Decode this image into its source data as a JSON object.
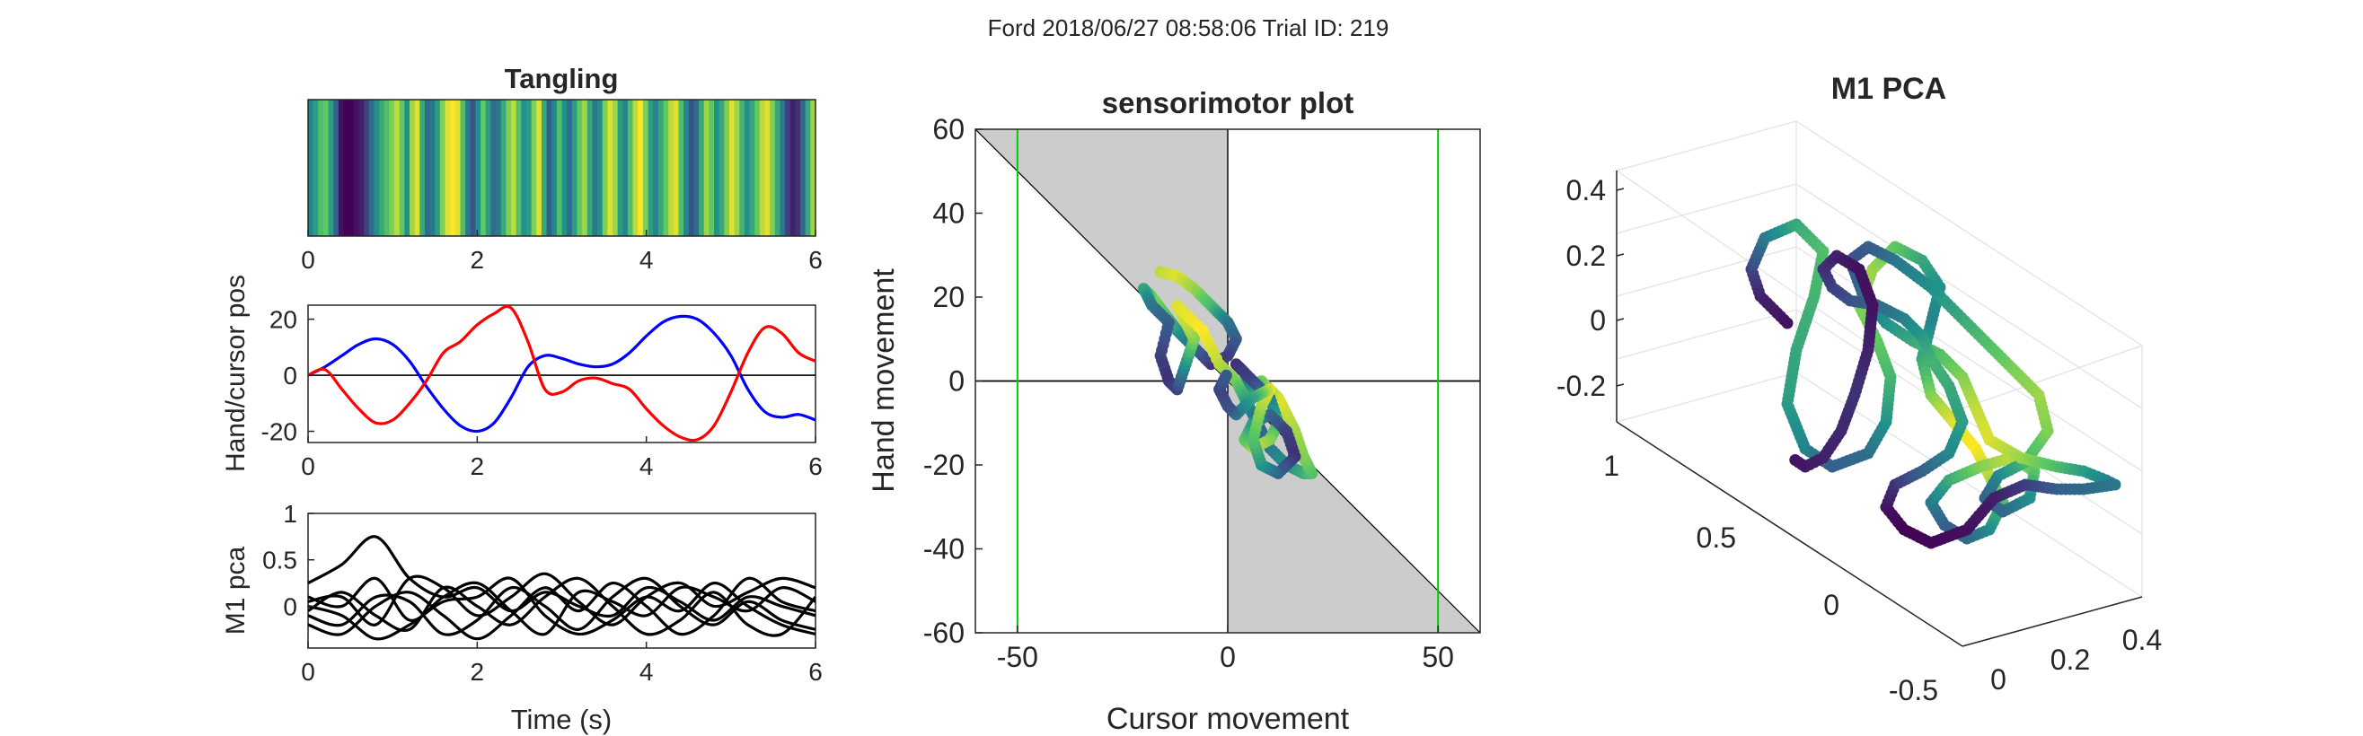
{
  "figure": {
    "suptitle": "Ford 2018/06/27 08:58:06 Trial ID: 219"
  },
  "chart_data": [
    {
      "id": "tangling",
      "type": "heatmap",
      "title": "Tangling",
      "xlabel": "",
      "ylabel": "",
      "xlim": [
        0,
        6
      ],
      "xticks": [
        "0",
        "2",
        "4",
        "6"
      ],
      "colormap": "viridis",
      "values": [
        0.45,
        0.55,
        0.7,
        0.75,
        0.55,
        0.3,
        0.05,
        0.0,
        0.0,
        0.05,
        0.1,
        0.2,
        0.35,
        0.5,
        0.6,
        0.7,
        0.8,
        0.9,
        0.75,
        0.5,
        0.85,
        0.95,
        0.6,
        0.35,
        0.4,
        0.55,
        0.8,
        0.95,
        1.0,
        0.95,
        0.7,
        0.4,
        0.25,
        0.5,
        0.75,
        0.55,
        0.35,
        0.4,
        0.6,
        0.8,
        0.9,
        0.7,
        0.5,
        0.55,
        0.8,
        0.95,
        0.6,
        0.3,
        0.45,
        0.7,
        0.5,
        0.35,
        0.55,
        0.75,
        0.85,
        0.6,
        0.4,
        0.5,
        0.8,
        0.95,
        0.85,
        0.55,
        0.45,
        0.7,
        0.9,
        1.0,
        0.8,
        0.55,
        0.45,
        0.6,
        0.75,
        0.9,
        0.95,
        0.7,
        0.45,
        0.25,
        0.35,
        0.6,
        0.85,
        0.75,
        0.5,
        0.6,
        0.8,
        0.95,
        0.85,
        0.65,
        0.5,
        0.6,
        0.75,
        0.9,
        0.95,
        0.8,
        0.6,
        0.4,
        0.2,
        0.1,
        0.15,
        0.35,
        0.6,
        0.85
      ]
    },
    {
      "id": "hand_cursor",
      "type": "line",
      "title": "",
      "xlabel": "",
      "ylabel": "Hand/cursor pos",
      "xlim": [
        0,
        6
      ],
      "ylim": [
        -24,
        25
      ],
      "xticks": [
        "0",
        "2",
        "4",
        "6"
      ],
      "yticks": [
        "-20",
        "0",
        "20"
      ],
      "zero_line": true,
      "series": [
        {
          "color": "#0000ff",
          "x": [
            0,
            0.2,
            0.4,
            0.6,
            0.8,
            1.0,
            1.2,
            1.4,
            1.6,
            1.8,
            2.0,
            2.2,
            2.4,
            2.6,
            2.8,
            3.0,
            3.2,
            3.4,
            3.6,
            3.8,
            4.0,
            4.2,
            4.4,
            4.6,
            4.8,
            5.0,
            5.2,
            5.4,
            5.6,
            5.8,
            6.0
          ],
          "y": [
            0,
            3,
            7,
            11,
            13,
            11,
            5,
            -4,
            -12,
            -18,
            -20,
            -17,
            -8,
            3,
            7,
            6,
            4,
            3,
            4,
            8,
            14,
            19,
            21,
            20,
            15,
            7,
            -5,
            -13,
            -15,
            -14,
            -16
          ]
        },
        {
          "color": "#ff0000",
          "x": [
            0,
            0.2,
            0.4,
            0.6,
            0.8,
            1.0,
            1.2,
            1.4,
            1.6,
            1.8,
            2.0,
            2.2,
            2.4,
            2.6,
            2.8,
            3.0,
            3.2,
            3.4,
            3.6,
            3.8,
            4.0,
            4.2,
            4.4,
            4.6,
            4.8,
            5.0,
            5.2,
            5.4,
            5.6,
            5.8,
            6.0
          ],
          "y": [
            0,
            2,
            -5,
            -12,
            -17,
            -16,
            -10,
            -2,
            8,
            12,
            18,
            22,
            24,
            12,
            -5,
            -6,
            -2,
            -1,
            -3,
            -5,
            -12,
            -18,
            -22,
            -23,
            -18,
            -6,
            8,
            17,
            15,
            8,
            5
          ]
        }
      ]
    },
    {
      "id": "m1_pca_traces",
      "type": "line",
      "title": "",
      "xlabel": "Time (s)",
      "ylabel": "M1 pca",
      "xlim": [
        0,
        6
      ],
      "ylim": [
        -0.45,
        1.0
      ],
      "xticks": [
        "0",
        "2",
        "4",
        "6"
      ],
      "yticks": [
        "0",
        "0.5",
        "1"
      ],
      "series": [
        {
          "color": "#000000",
          "x": [
            0,
            0.4,
            0.8,
            1.2,
            1.6,
            2.0,
            2.4,
            2.8,
            3.2,
            3.6,
            4.0,
            4.4,
            4.8,
            5.2,
            5.6,
            6.0
          ],
          "y": [
            0.25,
            0.45,
            0.75,
            0.3,
            0.1,
            0.2,
            -0.05,
            0.15,
            0.0,
            -0.1,
            0.2,
            0.05,
            -0.15,
            0.1,
            0.0,
            -0.1
          ]
        },
        {
          "color": "#000000",
          "x": [
            0,
            0.4,
            0.8,
            1.2,
            1.6,
            2.0,
            2.4,
            2.8,
            3.2,
            3.6,
            4.0,
            4.4,
            4.8,
            5.2,
            5.6,
            6.0
          ],
          "y": [
            0.05,
            0.1,
            -0.2,
            0.3,
            0.2,
            -0.1,
            0.1,
            0.35,
            0.05,
            -0.2,
            0.1,
            0.25,
            0.0,
            0.15,
            0.3,
            0.2
          ]
        },
        {
          "color": "#000000",
          "x": [
            0,
            0.4,
            0.8,
            1.2,
            1.6,
            2.0,
            2.4,
            2.8,
            3.2,
            3.6,
            4.0,
            4.4,
            4.8,
            5.2,
            5.6,
            6.0
          ],
          "y": [
            -0.1,
            -0.2,
            0.1,
            0.05,
            -0.3,
            -0.15,
            0.2,
            0.0,
            -0.25,
            0.1,
            0.3,
            0.0,
            -0.2,
            0.05,
            -0.15,
            -0.25
          ]
        },
        {
          "color": "#000000",
          "x": [
            0,
            0.4,
            0.8,
            1.2,
            1.6,
            2.0,
            2.4,
            2.8,
            3.2,
            3.6,
            4.0,
            4.4,
            4.8,
            5.2,
            5.6,
            6.0
          ],
          "y": [
            0.1,
            0.0,
            0.3,
            -0.15,
            0.1,
            0.25,
            -0.05,
            -0.3,
            0.15,
            0.05,
            -0.1,
            0.2,
            0.1,
            -0.05,
            0.2,
            0.05
          ]
        },
        {
          "color": "#000000",
          "x": [
            0,
            0.4,
            0.8,
            1.2,
            1.6,
            2.0,
            2.4,
            2.8,
            3.2,
            3.6,
            4.0,
            4.4,
            4.8,
            5.2,
            5.6,
            6.0
          ],
          "y": [
            -0.05,
            0.15,
            -0.1,
            -0.25,
            0.2,
            0.0,
            -0.2,
            0.1,
            0.3,
            0.0,
            -0.3,
            -0.15,
            0.15,
            -0.2,
            -0.3,
            0.1
          ]
        },
        {
          "color": "#000000",
          "x": [
            0,
            0.4,
            0.8,
            1.2,
            1.6,
            2.0,
            2.4,
            2.8,
            3.2,
            3.6,
            4.0,
            4.4,
            4.8,
            5.2,
            5.6,
            6.0
          ],
          "y": [
            -0.2,
            -0.3,
            0.0,
            0.15,
            -0.1,
            -0.35,
            -0.1,
            0.2,
            -0.05,
            0.25,
            0.0,
            -0.3,
            -0.1,
            0.3,
            0.05,
            -0.05
          ]
        },
        {
          "color": "#000000",
          "x": [
            0,
            0.4,
            0.8,
            1.2,
            1.6,
            2.0,
            2.4,
            2.8,
            3.2,
            3.6,
            4.0,
            4.4,
            4.8,
            5.2,
            5.6,
            6.0
          ],
          "y": [
            0.0,
            -0.1,
            -0.35,
            -0.2,
            0.05,
            0.1,
            0.3,
            -0.1,
            -0.3,
            -0.15,
            0.1,
            -0.05,
            0.25,
            0.0,
            -0.2,
            -0.3
          ]
        }
      ]
    },
    {
      "id": "sensorimotor",
      "type": "scatter",
      "title": "sensorimotor plot",
      "xlabel": "Cursor movement",
      "ylabel": "Hand movement",
      "xlim": [
        -60,
        60
      ],
      "ylim": [
        -60,
        60
      ],
      "xticks": [
        "-50",
        "0",
        "50"
      ],
      "yticks": [
        "-60",
        "-40",
        "-20",
        "0",
        "20",
        "40",
        "60"
      ],
      "vlines": [
        -50,
        50
      ],
      "vline_color": "#00cc00",
      "shaded_color": "#cccccc",
      "colormap": "viridis",
      "points": [
        [
          -16,
          26,
          0.9
        ],
        [
          -12,
          25,
          0.95
        ],
        [
          -8,
          22,
          0.85
        ],
        [
          -4,
          18,
          0.7
        ],
        [
          0,
          14,
          0.4
        ],
        [
          2,
          10,
          0.3
        ],
        [
          0,
          6,
          0.2
        ],
        [
          -4,
          4,
          0.15
        ],
        [
          -8,
          8,
          0.3
        ],
        [
          -12,
          12,
          0.5
        ],
        [
          -15,
          16,
          0.7
        ],
        [
          -18,
          20,
          0.8
        ],
        [
          -20,
          22,
          0.6
        ],
        [
          -18,
          18,
          0.4
        ],
        [
          -14,
          14,
          0.3
        ],
        [
          -16,
          6,
          0.2
        ],
        [
          -14,
          0,
          0.15
        ],
        [
          -12,
          -2,
          0.2
        ],
        [
          -10,
          4,
          0.5
        ],
        [
          -8,
          10,
          0.8
        ],
        [
          -10,
          14,
          0.9
        ],
        [
          -12,
          18,
          0.95
        ],
        [
          -6,
          12,
          1.0
        ],
        [
          -2,
          4,
          0.9
        ],
        [
          2,
          0,
          0.8
        ],
        [
          4,
          -4,
          0.6
        ],
        [
          6,
          -8,
          0.4
        ],
        [
          8,
          -12,
          0.3
        ],
        [
          10,
          -16,
          0.4
        ],
        [
          14,
          -20,
          0.5
        ],
        [
          18,
          -22,
          0.6
        ],
        [
          20,
          -22,
          0.7
        ],
        [
          18,
          -18,
          0.8
        ],
        [
          16,
          -12,
          0.85
        ],
        [
          14,
          -8,
          0.9
        ],
        [
          12,
          -4,
          0.95
        ],
        [
          8,
          0,
          0.8
        ],
        [
          6,
          -2,
          0.6
        ],
        [
          4,
          2,
          0.3
        ],
        [
          2,
          4,
          0.15
        ],
        [
          6,
          0,
          0.2
        ],
        [
          10,
          -4,
          0.4
        ],
        [
          12,
          -10,
          0.6
        ],
        [
          10,
          -14,
          0.8
        ],
        [
          6,
          -16,
          0.9
        ],
        [
          4,
          -14,
          0.75
        ],
        [
          6,
          -10,
          0.55
        ],
        [
          10,
          -8,
          0.35
        ],
        [
          14,
          -12,
          0.2
        ],
        [
          16,
          -18,
          0.15
        ],
        [
          12,
          -22,
          0.3
        ],
        [
          8,
          -20,
          0.5
        ],
        [
          6,
          -14,
          0.7
        ],
        [
          8,
          -6,
          0.85
        ],
        [
          10,
          -2,
          0.95
        ],
        [
          6,
          -4,
          0.6
        ],
        [
          2,
          -8,
          0.4
        ],
        [
          0,
          -6,
          0.25
        ],
        [
          -2,
          -2,
          0.2
        ],
        [
          0,
          2,
          0.3
        ]
      ]
    },
    {
      "id": "m1_pca_3d",
      "type": "scatter",
      "title": "M1 PCA",
      "xlabel": "",
      "ylabel": "",
      "zlabel": "",
      "xticks": [
        "0",
        "0.2",
        "0.4"
      ],
      "yticks": [
        "-0.5",
        "0",
        "0.5",
        "1"
      ],
      "zticks": [
        "-0.2",
        "0",
        "0.2",
        "0.4"
      ],
      "colormap": "viridis",
      "grid": true
    }
  ]
}
